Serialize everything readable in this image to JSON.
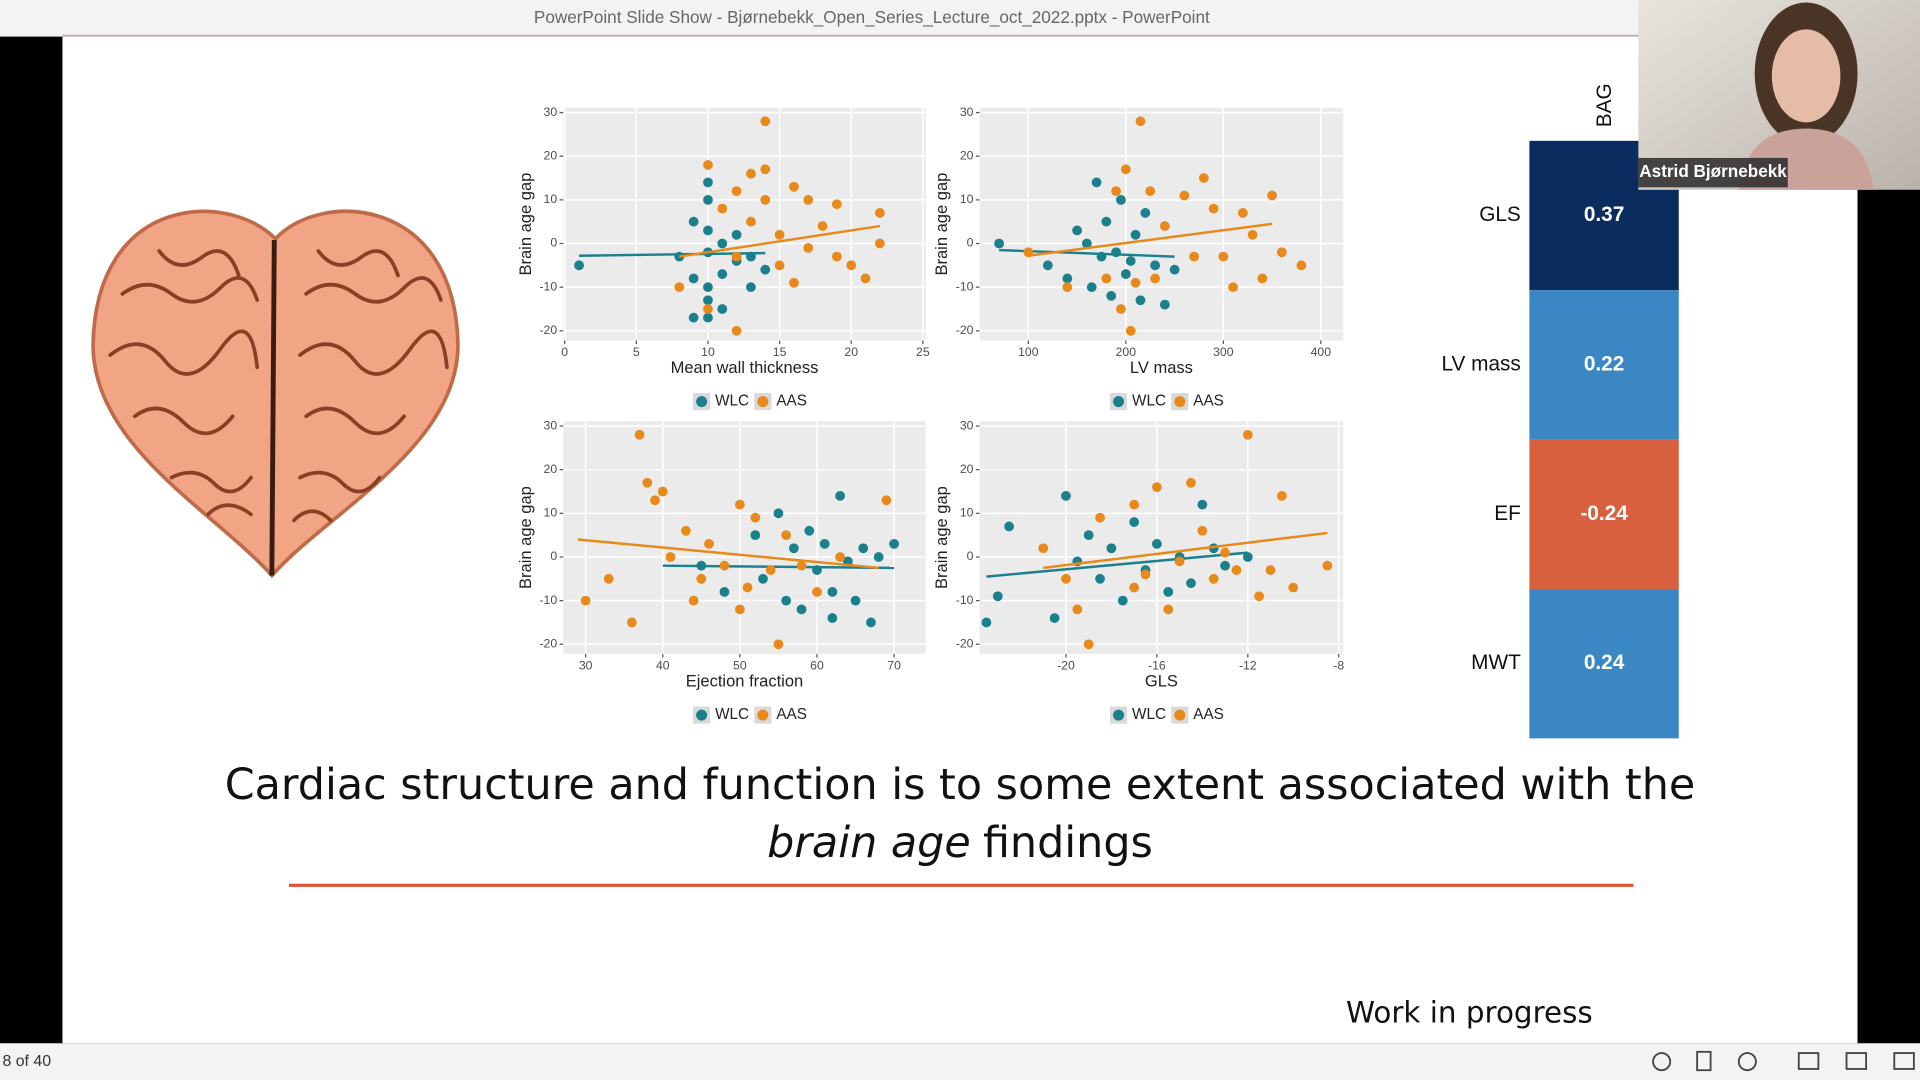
{
  "window": {
    "title": "PowerPoint Slide Show  -  Bjørnebekk_Open_Series_Lecture_oct_2022.pptx - PowerPoint"
  },
  "status": {
    "slide_counter": "8 of 40"
  },
  "webcam": {
    "name": "Astrid Bjørnebekk"
  },
  "caption": {
    "line1": "Cardiac structure and function is to some extent associated with the",
    "line2_italic": "brain age",
    "line2_rest": "findings"
  },
  "note": "Work in progress",
  "chart_data": [
    {
      "type": "scatter",
      "x_label": "Mean wall thickness",
      "y_label": "Brain age gap",
      "xlim": [
        -0.1,
        25.2
      ],
      "ylim": [
        -22.2,
        31.1
      ],
      "xticks": [
        0,
        5,
        10,
        15,
        20,
        25
      ],
      "yticks": [
        30,
        20,
        10,
        0,
        -10,
        -20
      ],
      "grid": true,
      "series": [
        {
          "name": "WLC",
          "color": "#1b7f8c",
          "x": [
            1,
            8,
            9,
            9,
            10,
            10,
            10,
            10,
            10,
            11,
            11,
            10,
            11,
            12,
            12,
            13,
            13,
            14,
            10,
            9
          ],
          "values": [
            -5,
            -3,
            -8,
            5,
            14,
            10,
            -10,
            -2,
            3,
            -7,
            0,
            -13,
            -15,
            -4,
            2,
            -10,
            -3,
            -6,
            -17,
            -17
          ],
          "fit": {
            "x": [
              1,
              14
            ],
            "values": [
              -2.8,
              -2.2
            ]
          }
        },
        {
          "name": "AAS",
          "color": "#e8891c",
          "x": [
            8,
            10,
            10,
            11,
            12,
            12,
            13,
            13,
            14,
            14,
            14,
            15,
            15,
            16,
            16,
            17,
            18,
            19,
            20,
            21,
            22,
            22,
            12,
            17,
            19
          ],
          "values": [
            -10,
            18,
            -15,
            8,
            12,
            -3,
            5,
            16,
            28,
            17,
            10,
            -5,
            2,
            13,
            -9,
            -1,
            4,
            -3,
            -5,
            -8,
            7,
            0,
            -20,
            10,
            9
          ],
          "fit": {
            "x": [
              8,
              22
            ],
            "values": [
              -3,
              4
            ]
          }
        }
      ]
    },
    {
      "type": "scatter",
      "x_label": "LV mass",
      "y_label": "Brain age gap",
      "xlim": [
        50,
        423
      ],
      "ylim": [
        -22.2,
        31.1
      ],
      "xticks": [
        100,
        200,
        300,
        400
      ],
      "yticks": [
        30,
        20,
        10,
        0,
        -10,
        -20
      ],
      "grid": true,
      "series": [
        {
          "name": "WLC",
          "color": "#1b7f8c",
          "x": [
            70,
            120,
            140,
            150,
            160,
            165,
            170,
            175,
            180,
            185,
            190,
            195,
            200,
            205,
            210,
            215,
            220,
            230,
            240,
            250
          ],
          "values": [
            0,
            -5,
            -8,
            3,
            0,
            -10,
            14,
            -3,
            5,
            -12,
            -2,
            10,
            -7,
            -4,
            2,
            -13,
            7,
            -5,
            -14,
            -6
          ],
          "fit": {
            "x": [
              70,
              250
            ],
            "values": [
              -1.5,
              -3
            ]
          }
        },
        {
          "name": "AAS",
          "color": "#e8891c",
          "x": [
            100,
            140,
            180,
            190,
            195,
            200,
            210,
            215,
            225,
            230,
            240,
            260,
            270,
            280,
            290,
            300,
            310,
            320,
            330,
            340,
            350,
            360,
            380,
            205
          ],
          "values": [
            -2,
            -10,
            -8,
            12,
            -15,
            17,
            -9,
            28,
            12,
            -8,
            4,
            11,
            -3,
            15,
            8,
            -3,
            -10,
            7,
            2,
            -8,
            11,
            -2,
            -5,
            -20
          ],
          "fit": {
            "x": [
              100,
              350
            ],
            "values": [
              -2.8,
              4.5
            ]
          }
        }
      ]
    },
    {
      "type": "scatter",
      "x_label": "Ejection fraction",
      "y_label": "Brain age gap",
      "xlim": [
        27.1,
        74.1
      ],
      "ylim": [
        -22.2,
        31.1
      ],
      "xticks": [
        30,
        40,
        50,
        60,
        70
      ],
      "yticks": [
        30,
        20,
        10,
        0,
        -10,
        -20
      ],
      "grid": true,
      "series": [
        {
          "name": "WLC",
          "color": "#1b7f8c",
          "x": [
            45,
            48,
            52,
            53,
            55,
            56,
            57,
            58,
            59,
            60,
            61,
            62,
            63,
            64,
            65,
            66,
            67,
            68,
            70,
            62
          ],
          "values": [
            -2,
            -8,
            5,
            -5,
            10,
            -10,
            2,
            -12,
            6,
            -3,
            3,
            -8,
            14,
            -1,
            -10,
            2,
            -15,
            0,
            3,
            -14
          ],
          "fit": {
            "x": [
              40,
              70
            ],
            "values": [
              -2,
              -2.5
            ]
          }
        },
        {
          "name": "AAS",
          "color": "#e8891c",
          "x": [
            30,
            33,
            36,
            37,
            38,
            39,
            40,
            41,
            43,
            45,
            46,
            48,
            50,
            51,
            52,
            54,
            55,
            56,
            58,
            60,
            63,
            69,
            50,
            44
          ],
          "values": [
            -10,
            -5,
            -15,
            28,
            17,
            13,
            15,
            0,
            6,
            -5,
            3,
            -2,
            12,
            -7,
            9,
            -3,
            -20,
            5,
            -2,
            -8,
            0,
            13,
            -12,
            -10
          ],
          "fit": {
            "x": [
              29,
              68
            ],
            "values": [
              4,
              -2.5
            ]
          }
        }
      ]
    },
    {
      "type": "scatter",
      "x_label": "GLS",
      "y_label": "Brain age gap",
      "xlim": [
        -23.8,
        -7.8
      ],
      "ylim": [
        -22.2,
        31.1
      ],
      "xticks": [
        -20,
        -16,
        -12,
        -8
      ],
      "yticks": [
        30,
        20,
        10,
        0,
        -10,
        -20
      ],
      "grid": true,
      "series": [
        {
          "name": "WLC",
          "color": "#1b7f8c",
          "x": [
            -23.5,
            -23,
            -22.5,
            -20,
            -19.5,
            -19,
            -18.5,
            -18,
            -17.5,
            -17,
            -16.5,
            -16,
            -15.5,
            -15,
            -14.5,
            -14,
            -13.5,
            -13,
            -12,
            -20.5
          ],
          "values": [
            -15,
            -9,
            7,
            14,
            -1,
            5,
            -5,
            2,
            -10,
            8,
            -3,
            3,
            -8,
            0,
            -6,
            12,
            2,
            -2,
            0,
            -14
          ],
          "fit": {
            "x": [
              -23.5,
              -12
            ],
            "values": [
              -4.5,
              1
            ]
          }
        },
        {
          "name": "AAS",
          "color": "#e8891c",
          "x": [
            -21,
            -20,
            -19,
            -18.5,
            -17,
            -16.5,
            -16,
            -15.5,
            -15,
            -14.5,
            -14,
            -13.5,
            -13,
            -12.5,
            -12,
            -11.5,
            -11,
            -10.5,
            -10,
            -8.5,
            -19.5,
            -17
          ],
          "values": [
            2,
            -5,
            -20,
            9,
            12,
            -4,
            16,
            -12,
            -1,
            17,
            6,
            -5,
            1,
            -3,
            28,
            -9,
            -3,
            14,
            -7,
            -2,
            -12,
            -7
          ],
          "fit": {
            "x": [
              -21,
              -8.5
            ],
            "values": [
              -2.5,
              5.5
            ]
          }
        }
      ]
    },
    {
      "type": "heatmap",
      "title": "BAG",
      "categories": [
        "GLS",
        "LV mass",
        "EF",
        "MWT"
      ],
      "values": [
        0.37,
        0.22,
        -0.24,
        0.24
      ],
      "colors": [
        "#0b2c5f",
        "#3a87c4",
        "#d9603f",
        "#3a87c4"
      ]
    }
  ]
}
